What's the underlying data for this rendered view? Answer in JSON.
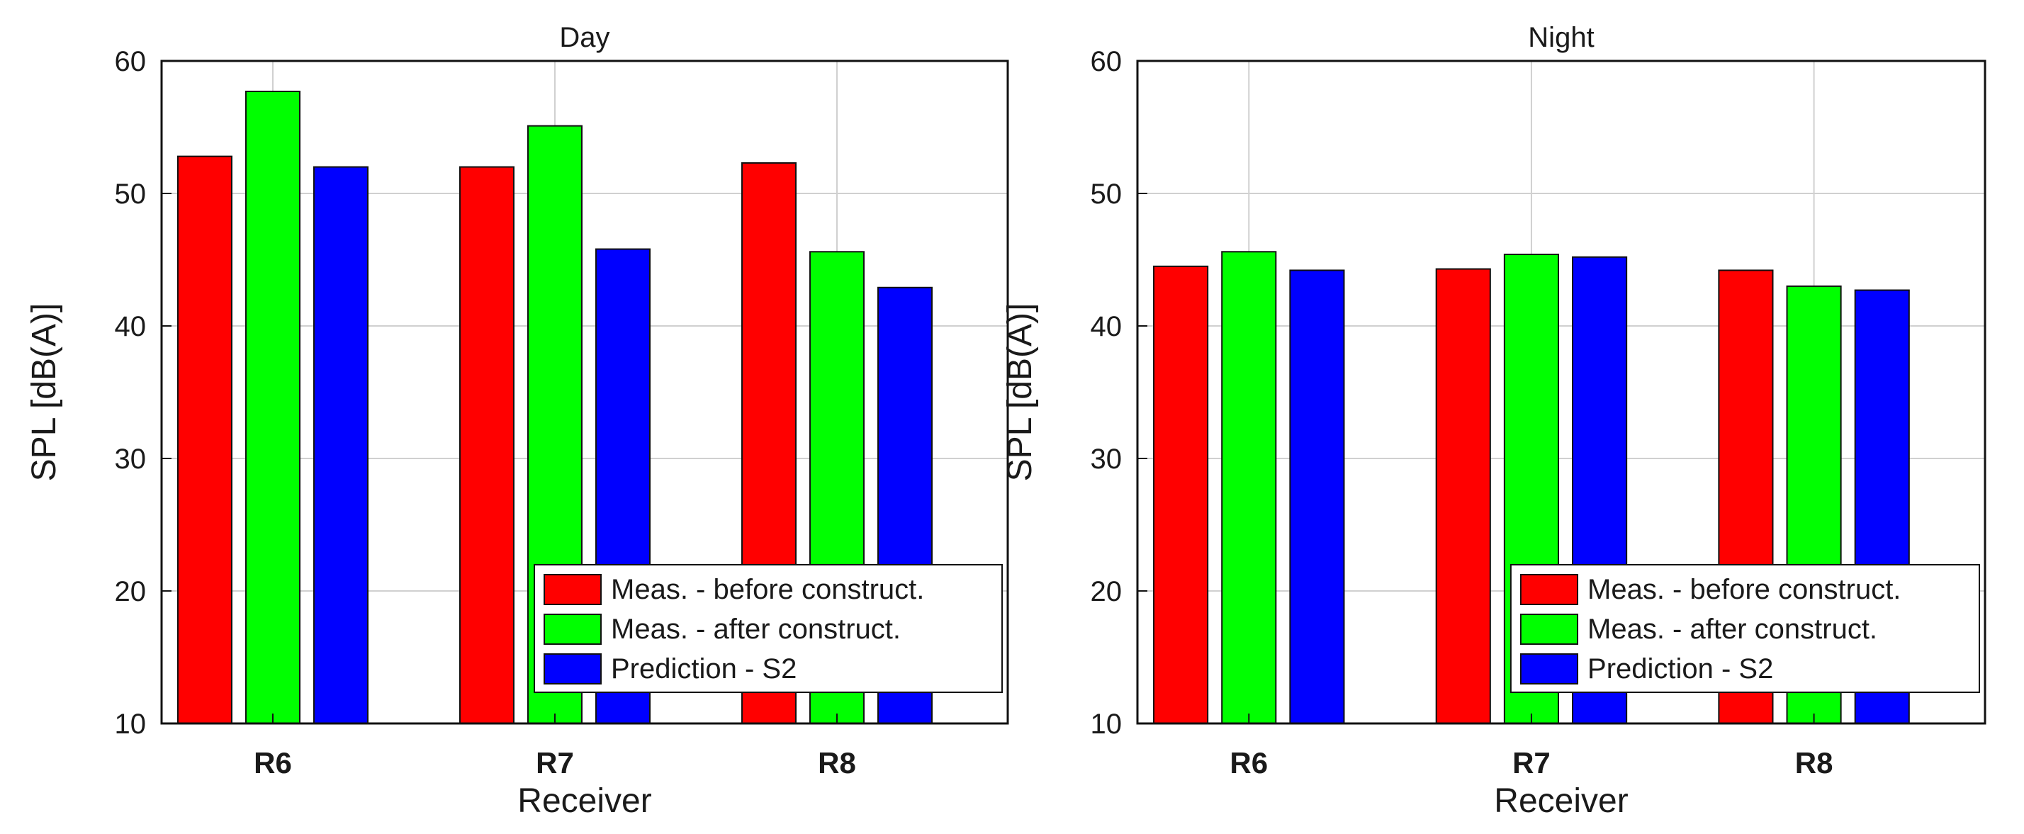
{
  "chart_data": [
    {
      "type": "bar",
      "title": "Day",
      "xlabel": "Receiver",
      "ylabel": "SPL [dB(A)]",
      "categories": [
        "R6",
        "R7",
        "R8"
      ],
      "ylim": [
        10,
        60
      ],
      "yticks": [
        "10",
        "20",
        "30",
        "40",
        "50",
        "60"
      ],
      "grid": true,
      "legend_position": "bottom-right",
      "series": [
        {
          "name": "Meas. - before construct.",
          "color": "#ff0000",
          "values": [
            52.8,
            52.0,
            52.3
          ]
        },
        {
          "name": "Meas. - after construct.",
          "color": "#00ff00",
          "values": [
            57.7,
            55.1,
            45.6
          ]
        },
        {
          "name": "Prediction - S2",
          "color": "#0000ff",
          "values": [
            52.0,
            45.8,
            42.9
          ]
        }
      ]
    },
    {
      "type": "bar",
      "title": "Night",
      "xlabel": "Receiver",
      "ylabel": "SPL [dB(A)]",
      "categories": [
        "R6",
        "R7",
        "R8"
      ],
      "ylim": [
        10,
        60
      ],
      "yticks": [
        "10",
        "20",
        "30",
        "40",
        "50",
        "60"
      ],
      "grid": true,
      "legend_position": "bottom-right",
      "series": [
        {
          "name": "Meas. - before construct.",
          "color": "#ff0000",
          "values": [
            44.5,
            44.3,
            44.2
          ]
        },
        {
          "name": "Meas. - after construct.",
          "color": "#00ff00",
          "values": [
            45.6,
            45.4,
            43.0
          ]
        },
        {
          "name": "Prediction - S2",
          "color": "#0000ff",
          "values": [
            44.2,
            45.2,
            42.7
          ]
        }
      ]
    }
  ]
}
